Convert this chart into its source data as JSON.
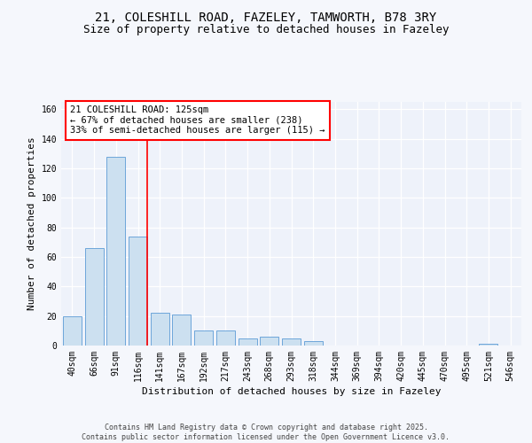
{
  "title1": "21, COLESHILL ROAD, FAZELEY, TAMWORTH, B78 3RY",
  "title2": "Size of property relative to detached houses in Fazeley",
  "xlabel": "Distribution of detached houses by size in Fazeley",
  "ylabel": "Number of detached properties",
  "categories": [
    "40sqm",
    "66sqm",
    "91sqm",
    "116sqm",
    "141sqm",
    "167sqm",
    "192sqm",
    "217sqm",
    "243sqm",
    "268sqm",
    "293sqm",
    "318sqm",
    "344sqm",
    "369sqm",
    "394sqm",
    "420sqm",
    "445sqm",
    "470sqm",
    "495sqm",
    "521sqm",
    "546sqm"
  ],
  "values": [
    20,
    66,
    128,
    74,
    22,
    21,
    10,
    10,
    5,
    6,
    5,
    3,
    0,
    0,
    0,
    0,
    0,
    0,
    0,
    1,
    0
  ],
  "bar_color": "#cce0f0",
  "bar_edge_color": "#5b9bd5",
  "red_line_index": 3,
  "annotation_text": "21 COLESHILL ROAD: 125sqm\n← 67% of detached houses are smaller (238)\n33% of semi-detached houses are larger (115) →",
  "ylim": [
    0,
    165
  ],
  "yticks": [
    0,
    20,
    40,
    60,
    80,
    100,
    120,
    140,
    160
  ],
  "footer": "Contains HM Land Registry data © Crown copyright and database right 2025.\nContains public sector information licensed under the Open Government Licence v3.0.",
  "plot_bg_color": "#eef2fa",
  "fig_bg_color": "#f5f7fc",
  "grid_color": "#ffffff",
  "title1_fontsize": 10,
  "title2_fontsize": 9,
  "axis_label_fontsize": 8,
  "tick_fontsize": 7,
  "footer_fontsize": 6,
  "annotation_fontsize": 7.5
}
